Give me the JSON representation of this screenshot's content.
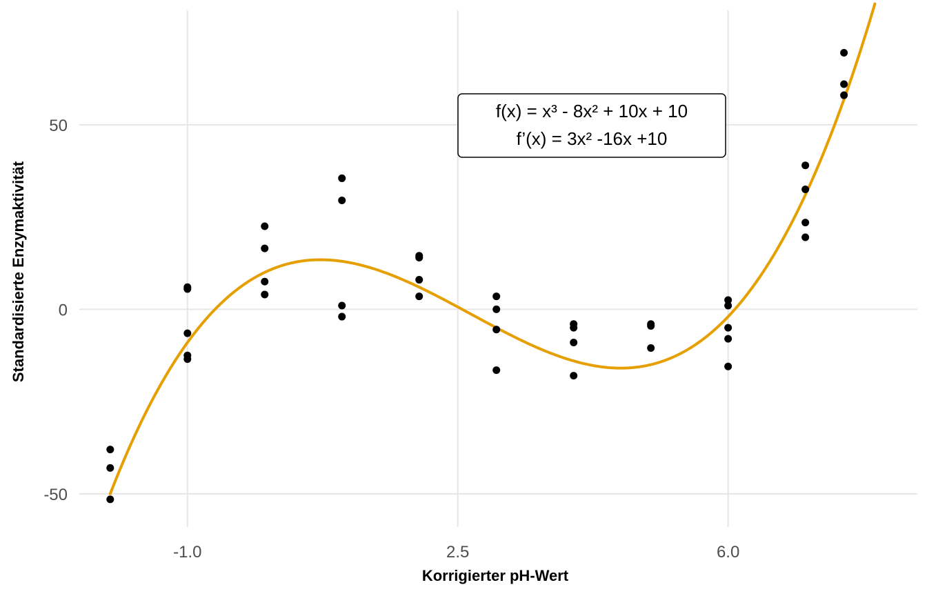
{
  "chart_data": {
    "type": "scatter",
    "title": "",
    "xlabel": "Korrigierter pH-Wert",
    "ylabel": "Standardisierte Enzymaktivität",
    "xlim": [
      -2.4,
      8.45
    ],
    "ylim": [
      -59,
      81
    ],
    "x_ticks": [
      -1.0,
      2.5,
      6.0
    ],
    "x_tick_labels": [
      "-1.0",
      "2.5",
      "6.0"
    ],
    "y_ticks": [
      -50,
      0,
      50
    ],
    "y_tick_labels": [
      "-50",
      "0",
      "50"
    ],
    "grid": true,
    "point_color": "#000000",
    "curve_color": "#E69F00",
    "curve": {
      "expression": "x^3 - 8x^2 + 10x + 10",
      "x_range": [
        -2.0,
        7.9
      ]
    },
    "annotation": {
      "lines": [
        "f(x) = x³ - 8x² + 10x + 10",
        "f’(x) = 3x² -16x +10"
      ]
    },
    "points": [
      {
        "x": -2.0,
        "y": -38.0
      },
      {
        "x": -2.0,
        "y": -43.0
      },
      {
        "x": -2.0,
        "y": -51.5
      },
      {
        "x": -1.0,
        "y": 6.0
      },
      {
        "x": -1.0,
        "y": 5.5
      },
      {
        "x": -1.0,
        "y": -6.5
      },
      {
        "x": -1.0,
        "y": -12.5
      },
      {
        "x": -1.0,
        "y": -13.5
      },
      {
        "x": 0.0,
        "y": 22.5
      },
      {
        "x": 0.0,
        "y": 16.5
      },
      {
        "x": 0.0,
        "y": 7.5
      },
      {
        "x": 0.0,
        "y": 4.0
      },
      {
        "x": 1.0,
        "y": 35.5
      },
      {
        "x": 1.0,
        "y": 29.5
      },
      {
        "x": 1.0,
        "y": 1.0
      },
      {
        "x": 1.0,
        "y": -2.0
      },
      {
        "x": 2.0,
        "y": 14.5
      },
      {
        "x": 2.0,
        "y": 14.0
      },
      {
        "x": 2.0,
        "y": 8.0
      },
      {
        "x": 2.0,
        "y": 3.5
      },
      {
        "x": 3.0,
        "y": 3.5
      },
      {
        "x": 3.0,
        "y": 0.0
      },
      {
        "x": 3.0,
        "y": -5.5
      },
      {
        "x": 3.0,
        "y": -16.5
      },
      {
        "x": 4.0,
        "y": -4.0
      },
      {
        "x": 4.0,
        "y": -5.0
      },
      {
        "x": 4.0,
        "y": -9.0
      },
      {
        "x": 4.0,
        "y": -18.0
      },
      {
        "x": 5.0,
        "y": -4.0
      },
      {
        "x": 5.0,
        "y": -4.5
      },
      {
        "x": 5.0,
        "y": -10.5
      },
      {
        "x": 6.0,
        "y": 2.5
      },
      {
        "x": 6.0,
        "y": 1.0
      },
      {
        "x": 6.0,
        "y": -5.0
      },
      {
        "x": 6.0,
        "y": -8.0
      },
      {
        "x": 6.0,
        "y": -15.5
      },
      {
        "x": 7.0,
        "y": 39.0
      },
      {
        "x": 7.0,
        "y": 32.5
      },
      {
        "x": 7.0,
        "y": 23.5
      },
      {
        "x": 7.0,
        "y": 19.5
      },
      {
        "x": 7.5,
        "y": 69.5
      },
      {
        "x": 7.5,
        "y": 61.0
      },
      {
        "x": 7.5,
        "y": 58.0
      }
    ]
  }
}
